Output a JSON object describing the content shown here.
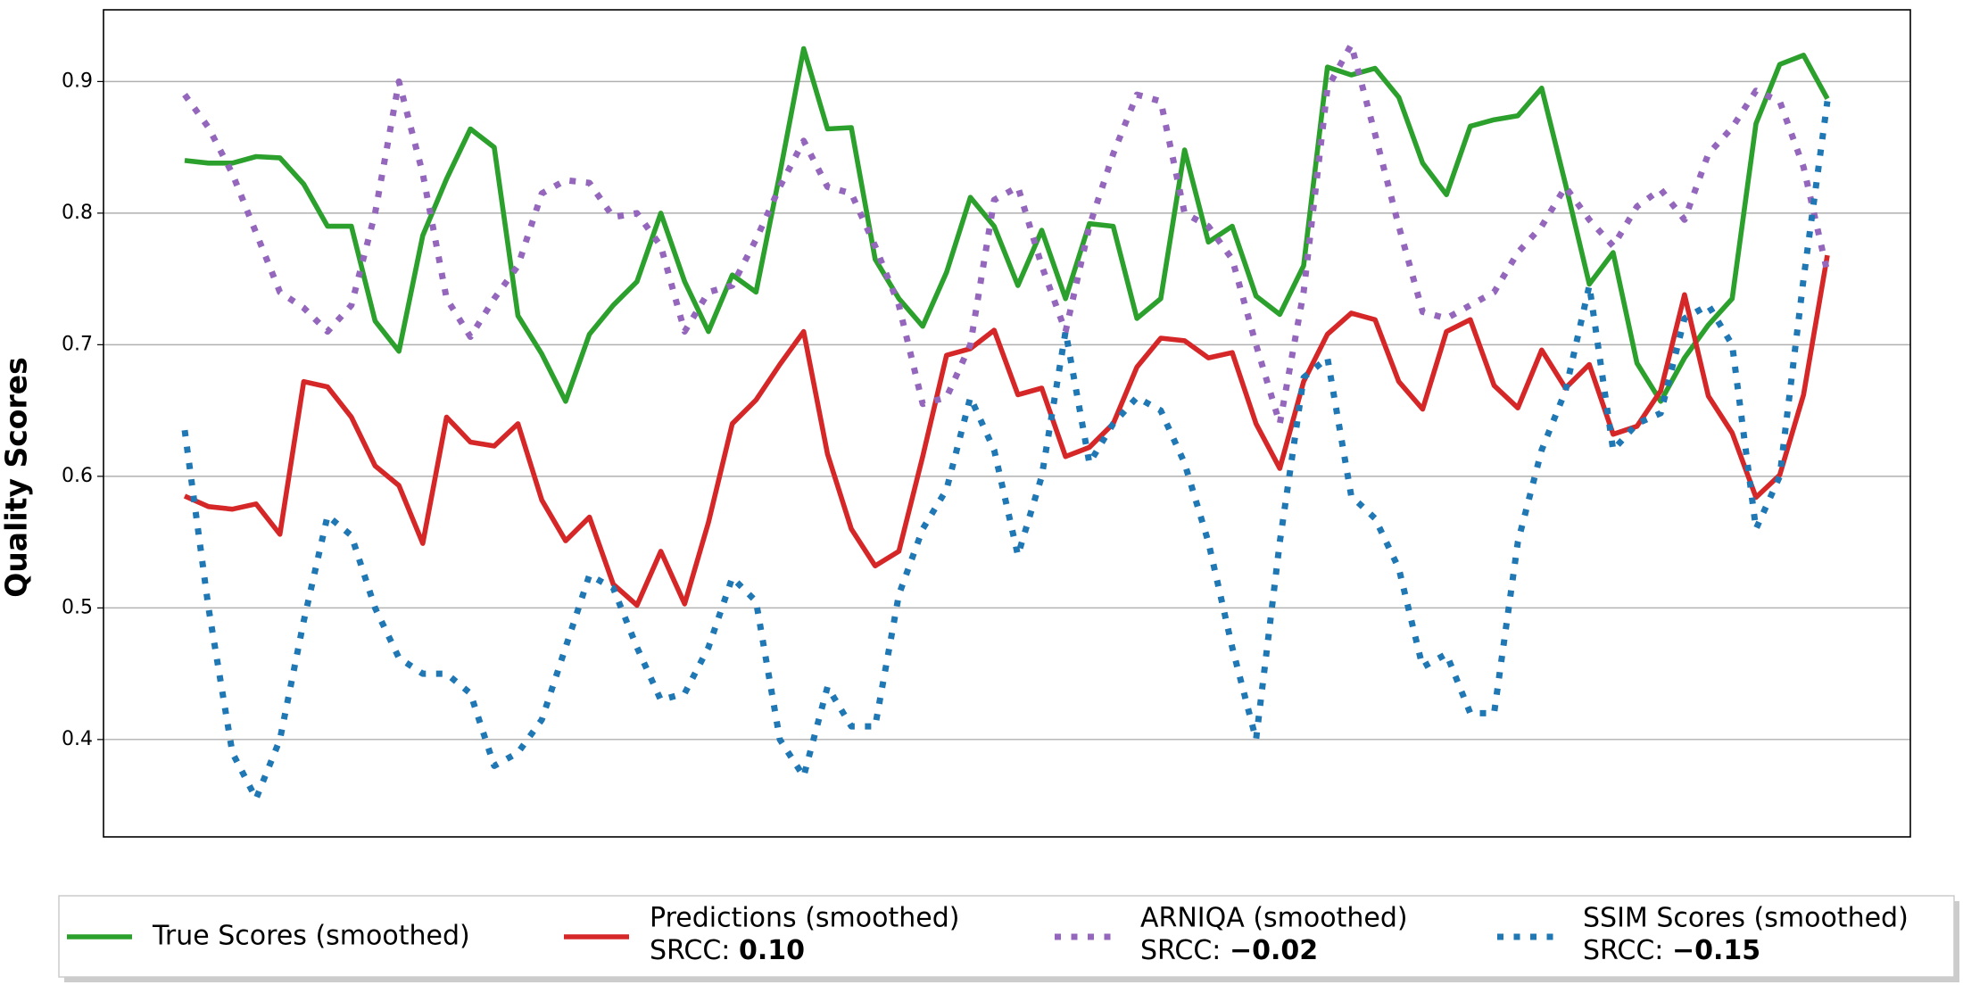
{
  "chart_data": {
    "type": "line",
    "ylabel": "Quality Scores",
    "ylim": [
      0.326,
      0.9545
    ],
    "yticks": [
      0.4,
      0.5,
      0.6,
      0.7,
      0.8,
      0.9
    ],
    "grid": true,
    "legend": "lower center",
    "srcc_label": "SRCC:",
    "series": [
      {
        "name": "True Scores (smoothed)",
        "color": "#2ca02c",
        "linestyle": "solid",
        "values": [
          0.84,
          0.838,
          0.838,
          0.843,
          0.842,
          0.822,
          0.79,
          0.79,
          0.718,
          0.695,
          0.783,
          0.826,
          0.864,
          0.85,
          0.722,
          0.693,
          0.657,
          0.708,
          0.73,
          0.748,
          0.8,
          0.748,
          0.71,
          0.753,
          0.74,
          0.83,
          0.925,
          0.864,
          0.865,
          0.765,
          0.735,
          0.714,
          0.755,
          0.812,
          0.79,
          0.745,
          0.787,
          0.735,
          0.792,
          0.79,
          0.72,
          0.735,
          0.848,
          0.778,
          0.79,
          0.737,
          0.723,
          0.76,
          0.911,
          0.905,
          0.91,
          0.888,
          0.838,
          0.814,
          0.866,
          0.871,
          0.874,
          0.895,
          0.822,
          0.746,
          0.77,
          0.686,
          0.657,
          0.69,
          0.715,
          0.735,
          0.868,
          0.913,
          0.92,
          0.887
        ]
      },
      {
        "name": "Predictions (smoothed)",
        "color": "#d62728",
        "linestyle": "solid",
        "srcc": "0.10",
        "values": [
          0.585,
          0.577,
          0.575,
          0.579,
          0.556,
          0.672,
          0.668,
          0.645,
          0.608,
          0.593,
          0.549,
          0.645,
          0.626,
          0.623,
          0.64,
          0.582,
          0.551,
          0.569,
          0.518,
          0.502,
          0.543,
          0.503,
          0.565,
          0.64,
          0.658,
          0.685,
          0.71,
          0.617,
          0.56,
          0.532,
          0.543,
          0.615,
          0.692,
          0.697,
          0.711,
          0.662,
          0.667,
          0.615,
          0.622,
          0.64,
          0.683,
          0.705,
          0.703,
          0.69,
          0.694,
          0.64,
          0.606,
          0.672,
          0.708,
          0.724,
          0.719,
          0.672,
          0.651,
          0.71,
          0.719,
          0.669,
          0.652,
          0.696,
          0.667,
          0.685,
          0.632,
          0.638,
          0.665,
          0.738,
          0.661,
          0.633,
          0.584,
          0.601,
          0.662,
          0.768
        ]
      },
      {
        "name": "ARNIQA (smoothed)",
        "color": "#9467bd",
        "linestyle": "dotted",
        "srcc": "−0.02",
        "values": [
          0.89,
          0.865,
          0.83,
          0.785,
          0.74,
          0.728,
          0.71,
          0.73,
          0.8,
          0.9,
          0.83,
          0.735,
          0.706,
          0.735,
          0.76,
          0.815,
          0.825,
          0.823,
          0.797,
          0.8,
          0.775,
          0.71,
          0.74,
          0.745,
          0.78,
          0.82,
          0.855,
          0.82,
          0.815,
          0.775,
          0.73,
          0.655,
          0.66,
          0.7,
          0.81,
          0.82,
          0.76,
          0.71,
          0.79,
          0.845,
          0.89,
          0.885,
          0.8,
          0.79,
          0.765,
          0.7,
          0.64,
          0.74,
          0.895,
          0.928,
          0.86,
          0.79,
          0.725,
          0.72,
          0.73,
          0.74,
          0.77,
          0.79,
          0.82,
          0.795,
          0.775,
          0.805,
          0.818,
          0.795,
          0.845,
          0.865,
          0.893,
          0.885,
          0.835,
          0.755
        ]
      },
      {
        "name": "SSIM Scores (smoothed)",
        "color": "#1f77b4",
        "linestyle": "dotted",
        "srcc": "−0.15",
        "values": [
          0.635,
          0.5,
          0.39,
          0.355,
          0.4,
          0.49,
          0.57,
          0.555,
          0.5,
          0.462,
          0.45,
          0.45,
          0.435,
          0.38,
          0.39,
          0.415,
          0.47,
          0.525,
          0.515,
          0.47,
          0.43,
          0.435,
          0.47,
          0.523,
          0.505,
          0.4,
          0.372,
          0.44,
          0.41,
          0.41,
          0.51,
          0.56,
          0.59,
          0.66,
          0.62,
          0.54,
          0.6,
          0.71,
          0.61,
          0.64,
          0.66,
          0.65,
          0.61,
          0.55,
          0.47,
          0.4,
          0.55,
          0.675,
          0.69,
          0.585,
          0.568,
          0.53,
          0.455,
          0.465,
          0.42,
          0.42,
          0.55,
          0.62,
          0.665,
          0.745,
          0.62,
          0.64,
          0.648,
          0.72,
          0.73,
          0.7,
          0.56,
          0.6,
          0.75,
          0.885
        ]
      }
    ]
  }
}
